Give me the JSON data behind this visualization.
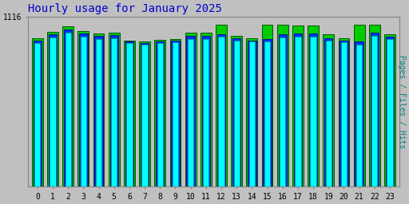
{
  "title": "Hourly usage for January 2025",
  "title_color": "#0000cc",
  "background_color": "#c0c0c0",
  "plot_bg_color": "#c0c0c0",
  "ylabel_right": "Pages / Files / Hits",
  "ylabel_right_color": "#008080",
  "hours": [
    0,
    1,
    2,
    3,
    4,
    5,
    6,
    7,
    8,
    9,
    10,
    11,
    12,
    13,
    14,
    15,
    16,
    17,
    18,
    19,
    20,
    21,
    22,
    23
  ],
  "pages": [
    940,
    980,
    1010,
    985,
    970,
    975,
    940,
    930,
    940,
    945,
    970,
    970,
    985,
    960,
    950,
    950,
    980,
    985,
    985,
    960,
    945,
    930,
    990,
    970
  ],
  "files": [
    960,
    1000,
    1030,
    1005,
    990,
    995,
    950,
    940,
    955,
    960,
    990,
    990,
    1000,
    975,
    960,
    970,
    1000,
    1005,
    1005,
    975,
    960,
    950,
    1010,
    985
  ],
  "hits": [
    975,
    1015,
    1050,
    1020,
    1005,
    1010,
    960,
    950,
    965,
    970,
    1010,
    1010,
    1060,
    990,
    975,
    1060,
    1060,
    1055,
    1055,
    1000,
    975,
    1060,
    1060,
    1000
  ],
  "ylim_min": 0,
  "ylim_max": 1116,
  "ytick_label": "1116",
  "pages_color": "#00ffff",
  "files_color": "#0033ff",
  "hits_color": "#00cc00",
  "pages_edge": "#009999",
  "files_edge": "#001188",
  "hits_edge": "#005500"
}
